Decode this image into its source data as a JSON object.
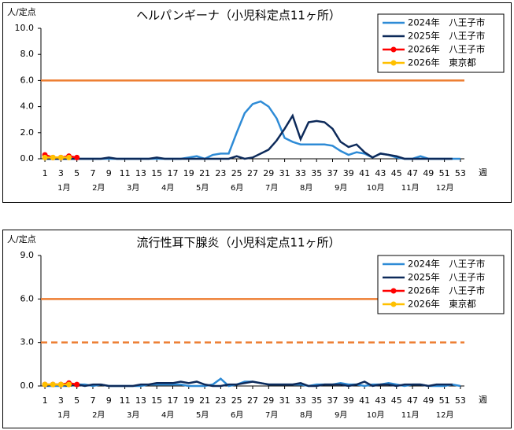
{
  "chart_data": [
    {
      "type": "line",
      "title": "ヘルパンギーナ（小児科定点11ヶ所）",
      "ylabel": "人/定点",
      "xlabel": "週",
      "x": [
        1,
        2,
        3,
        4,
        5,
        6,
        7,
        8,
        9,
        10,
        11,
        12,
        13,
        14,
        15,
        16,
        17,
        18,
        19,
        20,
        21,
        22,
        23,
        24,
        25,
        26,
        27,
        28,
        29,
        30,
        31,
        32,
        33,
        34,
        35,
        36,
        37,
        38,
        39,
        40,
        41,
        42,
        43,
        44,
        45,
        46,
        47,
        48,
        49,
        50,
        51,
        52,
        53
      ],
      "xlim": [
        0.5,
        53.5
      ],
      "xticks": [
        1,
        3,
        5,
        7,
        9,
        11,
        13,
        15,
        17,
        19,
        21,
        23,
        25,
        27,
        29,
        31,
        33,
        35,
        37,
        39,
        41,
        43,
        45,
        47,
        49,
        51,
        53
      ],
      "ylim": [
        0,
        10
      ],
      "yticks": [
        {
          "value": 0,
          "label": "0.0"
        },
        {
          "value": 2,
          "label": "2.0"
        },
        {
          "value": 4,
          "label": "4.0"
        },
        {
          "value": 6,
          "label": "6.0"
        },
        {
          "value": 8,
          "label": "8.0"
        },
        {
          "value": 10,
          "label": "10.0"
        }
      ],
      "month_labels": [
        "1月",
        "2月",
        "3月",
        "4月",
        "5月",
        "6月",
        "7月",
        "8月",
        "9月",
        "10月",
        "11月",
        "12月"
      ],
      "legend": "upper right",
      "reference_lines": [
        {
          "value": 6,
          "color": "#ed7d31",
          "style": "solid"
        }
      ],
      "series": [
        {
          "name": "2024年　八王子市",
          "color": "#2e8bd6",
          "markers": false,
          "values": [
            0,
            0,
            0,
            0,
            0,
            0,
            0,
            0,
            0,
            0,
            0,
            0,
            0,
            0,
            0,
            0,
            0,
            0,
            0.1,
            0.2,
            0,
            0.3,
            0.4,
            0.4,
            2.0,
            3.5,
            4.2,
            4.4,
            4.0,
            3.1,
            1.6,
            1.3,
            1.1,
            1.1,
            1.1,
            1.1,
            1.0,
            0.6,
            0.3,
            0.5,
            0.4,
            0.1,
            0.4,
            0.3,
            0.1,
            0,
            0,
            0.2,
            0,
            0,
            0,
            0,
            0
          ]
        },
        {
          "name": "2025年　八王子市",
          "color": "#0d2a5a",
          "markers": false,
          "values": [
            0,
            0,
            0,
            0,
            0,
            0,
            0,
            0,
            0.1,
            0,
            0,
            0,
            0,
            0,
            0.1,
            0,
            0,
            0,
            0,
            0,
            0,
            0,
            0,
            0,
            0.2,
            0,
            0.1,
            0.4,
            0.7,
            1.4,
            2.3,
            3.3,
            1.5,
            2.8,
            2.9,
            2.8,
            2.3,
            1.3,
            0.9,
            1.1,
            0.5,
            0.1,
            0.4,
            0.3,
            0.2,
            0,
            0,
            0,
            0,
            0,
            0,
            0,
            null
          ]
        },
        {
          "name": "2026年　八王子市",
          "color": "#ff0000",
          "markers": true,
          "values": [
            0.3,
            0.1,
            0.1,
            0.2,
            0.1,
            null,
            null,
            null,
            null,
            null,
            null,
            null,
            null,
            null,
            null,
            null,
            null,
            null,
            null,
            null,
            null,
            null,
            null,
            null,
            null,
            null,
            null,
            null,
            null,
            null,
            null,
            null,
            null,
            null,
            null,
            null,
            null,
            null,
            null,
            null,
            null,
            null,
            null,
            null,
            null,
            null,
            null,
            null,
            null,
            null,
            null,
            null,
            null
          ]
        },
        {
          "name": "2026年　東京都",
          "color": "#ffc000",
          "markers": true,
          "values": [
            0.1,
            0.1,
            0.1,
            0.1,
            null,
            null,
            null,
            null,
            null,
            null,
            null,
            null,
            null,
            null,
            null,
            null,
            null,
            null,
            null,
            null,
            null,
            null,
            null,
            null,
            null,
            null,
            null,
            null,
            null,
            null,
            null,
            null,
            null,
            null,
            null,
            null,
            null,
            null,
            null,
            null,
            null,
            null,
            null,
            null,
            null,
            null,
            null,
            null,
            null,
            null,
            null,
            null,
            null
          ]
        }
      ]
    },
    {
      "type": "line",
      "title": "流行性耳下腺炎（小児科定点11ヶ所）",
      "ylabel": "人/定点",
      "xlabel": "週",
      "x": [
        1,
        2,
        3,
        4,
        5,
        6,
        7,
        8,
        9,
        10,
        11,
        12,
        13,
        14,
        15,
        16,
        17,
        18,
        19,
        20,
        21,
        22,
        23,
        24,
        25,
        26,
        27,
        28,
        29,
        30,
        31,
        32,
        33,
        34,
        35,
        36,
        37,
        38,
        39,
        40,
        41,
        42,
        43,
        44,
        45,
        46,
        47,
        48,
        49,
        50,
        51,
        52,
        53
      ],
      "xlim": [
        0.5,
        53.5
      ],
      "xticks": [
        1,
        3,
        5,
        7,
        9,
        11,
        13,
        15,
        17,
        19,
        21,
        23,
        25,
        27,
        29,
        31,
        33,
        35,
        37,
        39,
        41,
        43,
        45,
        47,
        49,
        51,
        53
      ],
      "ylim": [
        0,
        9
      ],
      "yticks": [
        {
          "value": 0,
          "label": "0.0"
        },
        {
          "value": 3,
          "label": "3.0"
        },
        {
          "value": 6,
          "label": "6.0"
        },
        {
          "value": 9,
          "label": "9.0"
        }
      ],
      "month_labels": [
        "1月",
        "2月",
        "3月",
        "4月",
        "5月",
        "6月",
        "7月",
        "8月",
        "9月",
        "10月",
        "11月",
        "12月"
      ],
      "legend": "upper right",
      "reference_lines": [
        {
          "value": 6,
          "color": "#ed7d31",
          "style": "solid"
        },
        {
          "value": 3,
          "color": "#ed7d31",
          "style": "dashed"
        }
      ],
      "series": [
        {
          "name": "2024年　八王子市",
          "color": "#2e8bd6",
          "markers": false,
          "values": [
            0,
            0,
            0,
            0,
            0.1,
            0.1,
            0,
            0.1,
            0,
            0,
            0,
            0,
            0,
            0.1,
            0.1,
            0.1,
            0.1,
            0.1,
            0,
            0,
            0,
            0.1,
            0.5,
            0,
            0.1,
            0.3,
            0.3,
            0.2,
            0.1,
            0.1,
            0.1,
            0.1,
            0.1,
            0,
            0.1,
            0.1,
            0.1,
            0.2,
            0.1,
            0.1,
            0,
            0.1,
            0.1,
            0.2,
            0.1,
            0,
            0.1,
            0.1,
            0,
            0,
            0,
            0.1,
            0
          ]
        },
        {
          "name": "2025年　八王子市",
          "color": "#0d2a5a",
          "markers": false,
          "values": [
            0,
            0.1,
            0.1,
            0,
            0.1,
            0,
            0.1,
            0.1,
            0,
            0,
            0,
            0,
            0.1,
            0.1,
            0.2,
            0.2,
            0.2,
            0.3,
            0.2,
            0.3,
            0.1,
            0,
            0,
            0.1,
            0.1,
            0.2,
            0.3,
            0.2,
            0.1,
            0.1,
            0.1,
            0.1,
            0.2,
            0,
            0,
            0.1,
            0.1,
            0.1,
            0,
            0.1,
            0.3,
            0,
            0.1,
            0.1,
            0,
            0.1,
            0.1,
            0.1,
            0,
            0.1,
            0.1,
            0.1,
            null
          ]
        },
        {
          "name": "2026年　八王子市",
          "color": "#ff0000",
          "markers": true,
          "values": [
            0.1,
            0.1,
            0.1,
            0.2,
            0.1,
            null,
            null,
            null,
            null,
            null,
            null,
            null,
            null,
            null,
            null,
            null,
            null,
            null,
            null,
            null,
            null,
            null,
            null,
            null,
            null,
            null,
            null,
            null,
            null,
            null,
            null,
            null,
            null,
            null,
            null,
            null,
            null,
            null,
            null,
            null,
            null,
            null,
            null,
            null,
            null,
            null,
            null,
            null,
            null,
            null,
            null,
            null,
            null
          ]
        },
        {
          "name": "2026年　東京都",
          "color": "#ffc000",
          "markers": true,
          "values": [
            0.1,
            0.1,
            0.1,
            0.1,
            null,
            null,
            null,
            null,
            null,
            null,
            null,
            null,
            null,
            null,
            null,
            null,
            null,
            null,
            null,
            null,
            null,
            null,
            null,
            null,
            null,
            null,
            null,
            null,
            null,
            null,
            null,
            null,
            null,
            null,
            null,
            null,
            null,
            null,
            null,
            null,
            null,
            null,
            null,
            null,
            null,
            null,
            null,
            null,
            null,
            null,
            null,
            null,
            null
          ]
        }
      ]
    }
  ]
}
